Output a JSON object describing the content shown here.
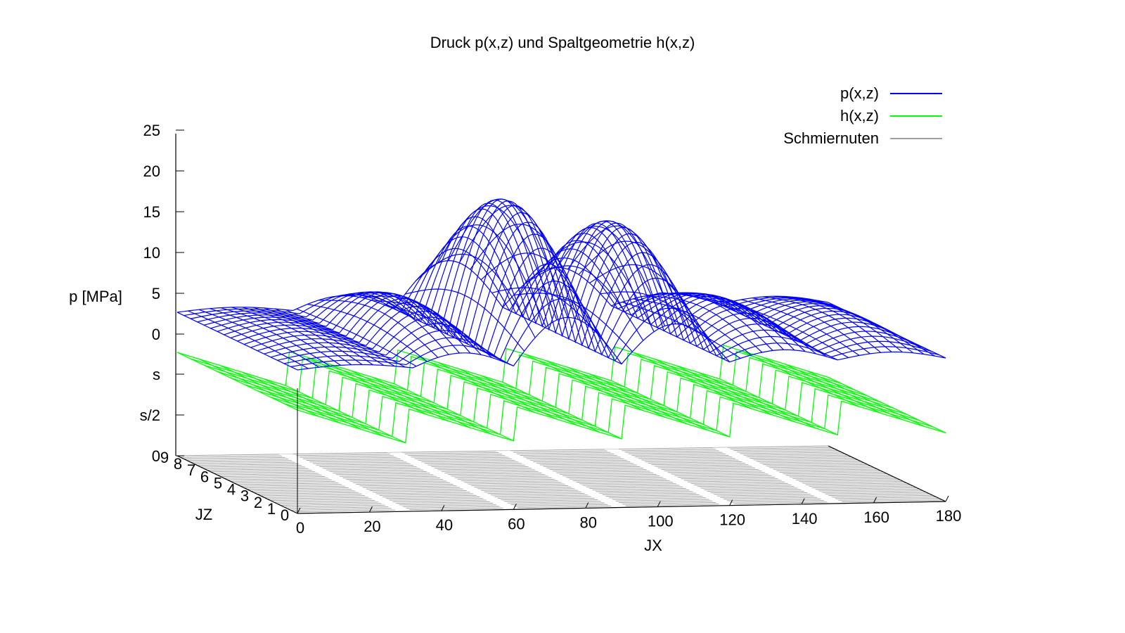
{
  "chart_data": {
    "type": "surface3d",
    "title": "Druck p(x,z) und Spaltgeometrie h(x,z)",
    "xlabel": "JX",
    "ylabel": "JZ",
    "zlabel": "p [MPa]",
    "x_range": [
      0,
      180
    ],
    "y_range": [
      0,
      9
    ],
    "z_ticks": [
      "0",
      "5",
      "10",
      "15",
      "20",
      "25"
    ],
    "h_ticks": [
      "0",
      "s/2",
      "s"
    ],
    "x_ticks": [
      "0",
      "20",
      "40",
      "60",
      "80",
      "100",
      "120",
      "140",
      "160",
      "180"
    ],
    "y_ticks": [
      "0",
      "1",
      "2",
      "3",
      "4",
      "5",
      "6",
      "7",
      "8",
      "9"
    ],
    "legend_position": "top-right",
    "grid": false,
    "series": [
      {
        "name": "p(x,z)",
        "color": "#0000ff"
      },
      {
        "name": "h(x,z)",
        "color": "#00ff00"
      },
      {
        "name": "Schmiernuten",
        "color": "#a0a0a0"
      }
    ],
    "pressure_lobes": [
      {
        "x_start": 0,
        "x_end": 32,
        "peak": 1.5
      },
      {
        "x_start": 32,
        "x_end": 60,
        "peak": 5
      },
      {
        "x_start": 60,
        "x_end": 90,
        "peak": 17
      },
      {
        "x_start": 90,
        "x_end": 120,
        "peak": 14
      },
      {
        "x_start": 120,
        "x_end": 150,
        "peak": 4
      },
      {
        "x_start": 150,
        "x_end": 180,
        "peak": 2.5
      }
    ],
    "grooves_x": [
      30,
      60,
      90,
      120,
      150
    ]
  }
}
